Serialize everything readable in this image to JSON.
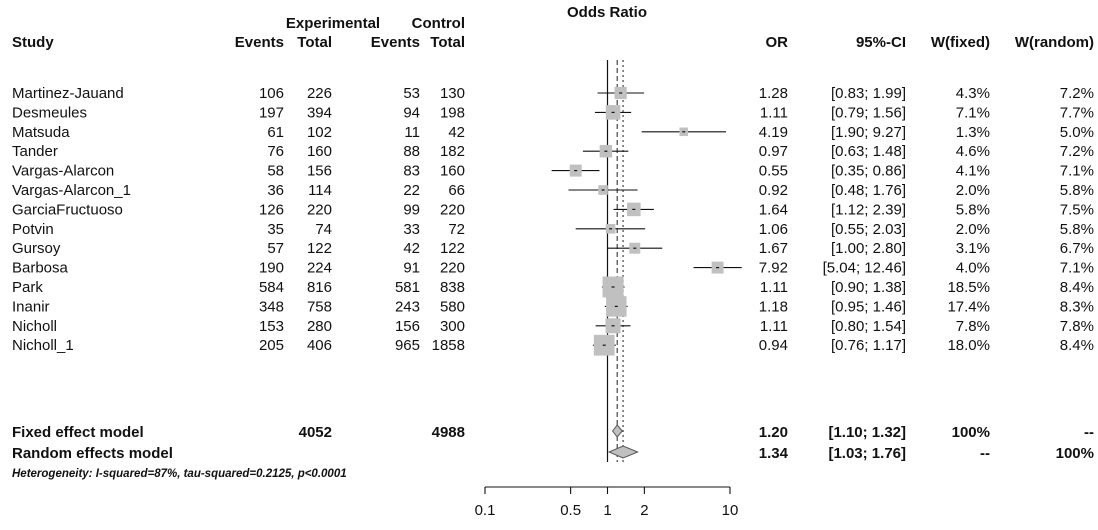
{
  "chart_data": {
    "type": "forest",
    "title": "Odds Ratio",
    "headers": {
      "study": "Study",
      "experimental": "Experimental",
      "control": "Control",
      "events": "Events",
      "total": "Total",
      "or": "OR",
      "ci": "95%-CI",
      "w_fixed": "W(fixed)",
      "w_random": "W(random)"
    },
    "studies": [
      {
        "name": "Martinez-Jauand",
        "e_events": "106",
        "e_total": "226",
        "c_events": "53",
        "c_total": "130",
        "or": 1.28,
        "lo": 0.83,
        "hi": 1.99,
        "or_text": "1.28",
        "ci_text": "[0.83; 1.99]",
        "w_fixed": "4.3%",
        "w_random": "7.2%"
      },
      {
        "name": "Desmeules",
        "e_events": "197",
        "e_total": "394",
        "c_events": "94",
        "c_total": "198",
        "or": 1.11,
        "lo": 0.79,
        "hi": 1.56,
        "or_text": "1.11",
        "ci_text": "[0.79; 1.56]",
        "w_fixed": "7.1%",
        "w_random": "7.7%"
      },
      {
        "name": "Matsuda",
        "e_events": "61",
        "e_total": "102",
        "c_events": "11",
        "c_total": "42",
        "or": 4.19,
        "lo": 1.9,
        "hi": 9.27,
        "or_text": "4.19",
        "ci_text": "[1.90; 9.27]",
        "w_fixed": "1.3%",
        "w_random": "5.0%"
      },
      {
        "name": "Tander",
        "e_events": "76",
        "e_total": "160",
        "c_events": "88",
        "c_total": "182",
        "or": 0.97,
        "lo": 0.63,
        "hi": 1.48,
        "or_text": "0.97",
        "ci_text": "[0.63; 1.48]",
        "w_fixed": "4.6%",
        "w_random": "7.2%"
      },
      {
        "name": "Vargas-Alarcon",
        "e_events": "58",
        "e_total": "156",
        "c_events": "83",
        "c_total": "160",
        "or": 0.55,
        "lo": 0.35,
        "hi": 0.86,
        "or_text": "0.55",
        "ci_text": "[0.35; 0.86]",
        "w_fixed": "4.1%",
        "w_random": "7.1%"
      },
      {
        "name": "Vargas-Alarcon_1",
        "e_events": "36",
        "e_total": "114",
        "c_events": "22",
        "c_total": "66",
        "or": 0.92,
        "lo": 0.48,
        "hi": 1.76,
        "or_text": "0.92",
        "ci_text": "[0.48; 1.76]",
        "w_fixed": "2.0%",
        "w_random": "5.8%"
      },
      {
        "name": "GarciaFructuoso",
        "e_events": "126",
        "e_total": "220",
        "c_events": "99",
        "c_total": "220",
        "or": 1.64,
        "lo": 1.12,
        "hi": 2.39,
        "or_text": "1.64",
        "ci_text": "[1.12; 2.39]",
        "w_fixed": "5.8%",
        "w_random": "7.5%"
      },
      {
        "name": "Potvin",
        "e_events": "35",
        "e_total": "74",
        "c_events": "33",
        "c_total": "72",
        "or": 1.06,
        "lo": 0.55,
        "hi": 2.03,
        "or_text": "1.06",
        "ci_text": "[0.55; 2.03]",
        "w_fixed": "2.0%",
        "w_random": "5.8%"
      },
      {
        "name": "Gursoy",
        "e_events": "57",
        "e_total": "122",
        "c_events": "42",
        "c_total": "122",
        "or": 1.67,
        "lo": 1.0,
        "hi": 2.8,
        "or_text": "1.67",
        "ci_text": "[1.00; 2.80]",
        "w_fixed": "3.1%",
        "w_random": "6.7%"
      },
      {
        "name": "Barbosa",
        "e_events": "190",
        "e_total": "224",
        "c_events": "91",
        "c_total": "220",
        "or": 7.92,
        "lo": 5.04,
        "hi": 12.46,
        "or_text": "7.92",
        "ci_text": "[5.04; 12.46]",
        "w_fixed": "4.0%",
        "w_random": "7.1%"
      },
      {
        "name": "Park",
        "e_events": "584",
        "e_total": "816",
        "c_events": "581",
        "c_total": "838",
        "or": 1.11,
        "lo": 0.9,
        "hi": 1.38,
        "or_text": "1.11",
        "ci_text": "[0.90; 1.38]",
        "w_fixed": "18.5%",
        "w_random": "8.4%"
      },
      {
        "name": "Inanir",
        "e_events": "348",
        "e_total": "758",
        "c_events": "243",
        "c_total": "580",
        "or": 1.18,
        "lo": 0.95,
        "hi": 1.46,
        "or_text": "1.18",
        "ci_text": "[0.95; 1.46]",
        "w_fixed": "17.4%",
        "w_random": "8.3%"
      },
      {
        "name": "Nicholl",
        "e_events": "153",
        "e_total": "280",
        "c_events": "156",
        "c_total": "300",
        "or": 1.11,
        "lo": 0.8,
        "hi": 1.54,
        "or_text": "1.11",
        "ci_text": "[0.80; 1.54]",
        "w_fixed": "7.8%",
        "w_random": "7.8%"
      },
      {
        "name": "Nicholl_1",
        "e_events": "205",
        "e_total": "406",
        "c_events": "965",
        "c_total": "1858",
        "or": 0.94,
        "lo": 0.76,
        "hi": 1.17,
        "or_text": "0.94",
        "ci_text": "[0.76; 1.17]",
        "w_fixed": "18.0%",
        "w_random": "8.4%"
      }
    ],
    "fixed": {
      "name": "Fixed effect model",
      "e_total": "4052",
      "c_total": "4988",
      "or": 1.2,
      "lo": 1.1,
      "hi": 1.32,
      "or_text": "1.20",
      "ci_text": "[1.10; 1.32]",
      "w_fixed": "100%",
      "w_random": "--"
    },
    "random": {
      "name": "Random effects model",
      "or": 1.34,
      "lo": 1.03,
      "hi": 1.76,
      "or_text": "1.34",
      "ci_text": "[1.03; 1.76]",
      "w_fixed": "--",
      "w_random": "100%"
    },
    "heterogeneity": "Heterogeneity: I-squared=87%, tau-squared=0.2125, p<0.0001",
    "x_scale": "log",
    "x_ticks": [
      0.1,
      0.5,
      1,
      2,
      10
    ],
    "x_tick_labels": [
      "0.1",
      "0.5",
      "1",
      "2",
      "10"
    ],
    "xlim": [
      0.1,
      10
    ],
    "null_value": 1,
    "colors": {
      "box": "#c0c0c0",
      "line": "#111111",
      "diamond": "#c0c0c0",
      "summary_line": "#555555"
    }
  }
}
